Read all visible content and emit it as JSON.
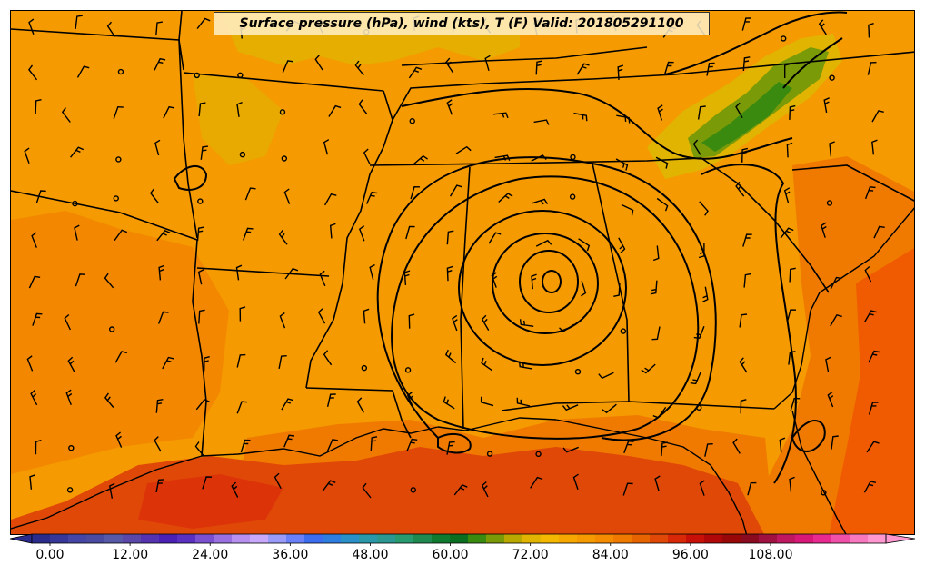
{
  "title": "Surface pressure (hPa), wind (kts), T (F) Valid: 201805291100",
  "colorbar": {
    "tick_labels": [
      "0.00",
      "12.00",
      "24.00",
      "36.00",
      "48.00",
      "60.00",
      "72.00",
      "84.00",
      "96.00",
      "108.00"
    ],
    "colors": [
      "#2b2b8c",
      "#37379a",
      "#4545a5",
      "#4a4aa0",
      "#5858a8",
      "#5a47a8",
      "#5533b0",
      "#4a20b5",
      "#5a30c0",
      "#7a4fd0",
      "#9a70e0",
      "#b890f0",
      "#c8a8f8",
      "#9a9af8",
      "#6a80f8",
      "#3c6cf0",
      "#2e7de0",
      "#2a90c8",
      "#2a98a8",
      "#2a9890",
      "#289a70",
      "#1f8a50",
      "#107a30",
      "#0a6e20",
      "#3a8a10",
      "#7a9a08",
      "#b8a800",
      "#e0b400",
      "#f5b800",
      "#f7a800",
      "#f59a00",
      "#f58c00",
      "#f07a00",
      "#e86400",
      "#e04808",
      "#d82808",
      "#c81008",
      "#b00808",
      "#980808",
      "#8a0a20",
      "#a01040",
      "#c01860",
      "#d81878",
      "#e82a90",
      "#f050a8",
      "#f878c0",
      "#ff98d0"
    ],
    "vmin": 0,
    "vmax": 117.5,
    "extend": "both"
  },
  "map": {
    "region": "Southeast United States",
    "layers": [
      "temperature filled contours (F)",
      "pressure isobars (hPa)",
      "wind barbs (kts)",
      "state borders",
      "coastline"
    ],
    "colors": {
      "warm": "#f59a00",
      "hot": "#f07a00",
      "hotter": "#e04808",
      "cool": "#e0b400",
      "green": "#7a9a08",
      "lines": "#000000"
    }
  }
}
